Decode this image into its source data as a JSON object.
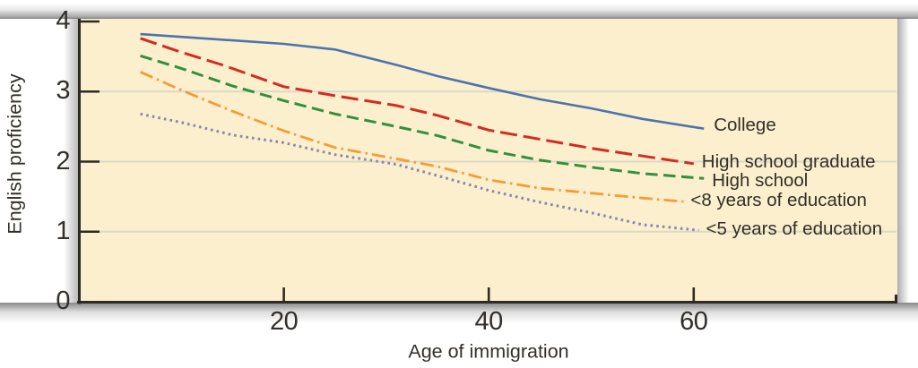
{
  "figure": {
    "plot_background": "#fbefcd",
    "axis_color": "#2d2a26",
    "grid_color": "#ddd8c7",
    "text_color": "#332f29"
  },
  "chart_data": {
    "type": "line",
    "title": "",
    "xlabel": "Age of immigration",
    "ylabel": "English proficiency",
    "xlim": [
      0,
      80
    ],
    "ylim": [
      0,
      4
    ],
    "x_ticks": [
      "20",
      "40",
      "60"
    ],
    "x_tick_values": [
      20,
      40,
      60
    ],
    "y_ticks": [
      "4",
      "3",
      "2",
      "1",
      "0"
    ],
    "y_tick_values": [
      4,
      3,
      2,
      1,
      0
    ],
    "gridlines_y": [
      3,
      2,
      1
    ],
    "grid": "horizontal-only",
    "legend_position": "labels-at-line-ends",
    "series": [
      {
        "name": "College",
        "color": "#4c74ad",
        "line_style": "solid",
        "x": [
          6,
          10,
          15,
          20,
          25,
          31,
          35,
          40,
          45,
          50,
          55,
          61
        ],
        "y": [
          3.82,
          3.78,
          3.73,
          3.68,
          3.6,
          3.38,
          3.22,
          3.05,
          2.89,
          2.76,
          2.61,
          2.47
        ]
      },
      {
        "name": "High school graduate",
        "color": "#d32b25",
        "line_style": "long-dash",
        "x": [
          6,
          10,
          14,
          20,
          25,
          31,
          35,
          40,
          45,
          50,
          55,
          60
        ],
        "y": [
          3.76,
          3.56,
          3.38,
          3.07,
          2.94,
          2.8,
          2.66,
          2.45,
          2.32,
          2.19,
          2.08,
          1.97
        ]
      },
      {
        "name": "High school",
        "color": "#31913f",
        "line_style": "dash",
        "x": [
          6,
          10,
          15,
          20,
          25,
          31,
          35,
          40,
          45,
          50,
          55,
          61
        ],
        "y": [
          3.51,
          3.33,
          3.08,
          2.87,
          2.68,
          2.5,
          2.37,
          2.16,
          2.02,
          1.92,
          1.83,
          1.76
        ]
      },
      {
        "name": "<8 years of education",
        "color": "#f59c35",
        "line_style": "dash-dot",
        "x": [
          6,
          10,
          15,
          20,
          25,
          31,
          35,
          40,
          45,
          50,
          55,
          59
        ],
        "y": [
          3.28,
          3.02,
          2.72,
          2.44,
          2.2,
          2.04,
          1.93,
          1.74,
          1.62,
          1.55,
          1.48,
          1.43
        ]
      },
      {
        "name": "<5 years of education",
        "color": "#8985b2",
        "line_style": "dot",
        "x": [
          6,
          10,
          15,
          20,
          25,
          31,
          35,
          40,
          45,
          50,
          55,
          60.5
        ],
        "y": [
          2.68,
          2.56,
          2.38,
          2.27,
          2.1,
          1.96,
          1.8,
          1.59,
          1.42,
          1.27,
          1.1,
          1.02
        ]
      }
    ]
  }
}
